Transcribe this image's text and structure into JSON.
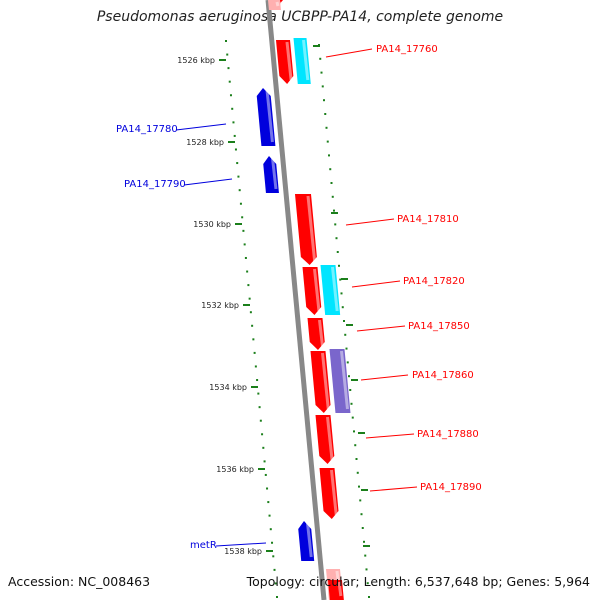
{
  "title": "Pseudomonas aeruginosa UCBPP-PA14, complete genome",
  "footer": {
    "accession": "Accession: NC_008463",
    "topology": "Topology: circular; Length: 6,537,648 bp; Genes: 5,964"
  },
  "colors": {
    "backbone": "#888888",
    "forward_gene": "#ff0000",
    "reverse_gene": "#0000dd",
    "ticks": "#1b7f1b",
    "cyan": "#00e5ff",
    "purple": "#7a66cc"
  },
  "scale": {
    "unit": "kbp",
    "labels": [
      "1526 kbp",
      "1528 kbp",
      "1530 kbp",
      "1532 kbp",
      "1534 kbp",
      "1536 kbp",
      "1538 kbp"
    ]
  },
  "gene_labels": [
    {
      "name": "PA14_17760",
      "strand": "forward"
    },
    {
      "name": "PA14_17780",
      "strand": "reverse"
    },
    {
      "name": "PA14_17790",
      "strand": "reverse"
    },
    {
      "name": "PA14_17810",
      "strand": "forward"
    },
    {
      "name": "PA14_17820",
      "strand": "forward"
    },
    {
      "name": "PA14_17850",
      "strand": "forward"
    },
    {
      "name": "PA14_17860",
      "strand": "forward"
    },
    {
      "name": "PA14_17880",
      "strand": "forward"
    },
    {
      "name": "PA14_17890",
      "strand": "forward"
    },
    {
      "name": "metR",
      "strand": "reverse"
    }
  ]
}
